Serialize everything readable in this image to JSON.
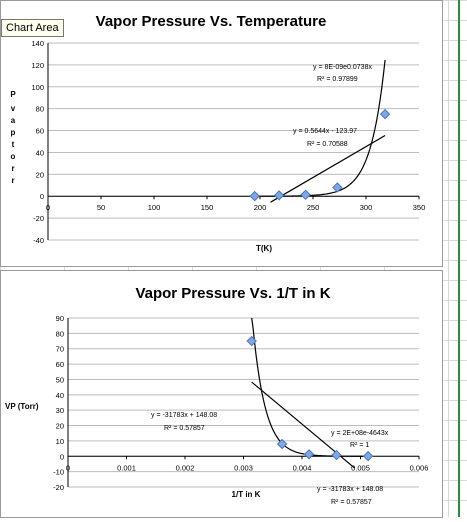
{
  "tooltip": "Chart Area",
  "colors": {
    "marker_fill": "#7ea7e3",
    "marker_stroke": "#4a75c0",
    "line": "#000000",
    "grid": "#bdbdbd",
    "spreadsheet_grid": "#d8d8d8",
    "selected_column": "#2e8b3d"
  },
  "chart_data": [
    {
      "type": "scatter",
      "title": "Vapor Pressure Vs. Temperature",
      "xlabel": "T(K)",
      "ylabel": "P vaptorr",
      "xlim": [
        0,
        350
      ],
      "ylim": [
        -40,
        140
      ],
      "xticks": [
        "0",
        "50",
        "100",
        "150",
        "200",
        "250",
        "300",
        "350"
      ],
      "yticks": [
        "140",
        "120",
        "100",
        "80",
        "60",
        "40",
        "20",
        "0",
        "-20",
        "-40"
      ],
      "grid": "horizontal",
      "series": [
        {
          "x": [
            195,
            218,
            243,
            273,
            318
          ],
          "y": [
            0.1,
            0.8,
            1.3,
            8,
            75
          ]
        }
      ],
      "trendlines": [
        {
          "type": "exponential",
          "equation": "y = 8E-09e0.0738x",
          "r2": "R² = 0.97899",
          "a": 8e-09,
          "b": 0.0738,
          "x_range": [
            190,
            318
          ]
        },
        {
          "type": "linear",
          "equation": "y = 0.5644x - 123.97",
          "r2": "R² = 0.70588",
          "m": 0.5644,
          "c": -123.97,
          "x_range": [
            210,
            318
          ]
        }
      ]
    },
    {
      "type": "scatter",
      "title": "Vapor Pressure Vs. 1/T in K",
      "xlabel": "1/T in K",
      "ylabel": "VP (Torr)",
      "xlim": [
        0,
        0.006
      ],
      "ylim": [
        -20,
        90
      ],
      "xticks": [
        "0",
        "0.001",
        "0.002",
        "0.003",
        "0.004",
        "0.005",
        "0.006"
      ],
      "yticks": [
        "90",
        "80",
        "70",
        "60",
        "50",
        "40",
        "30",
        "20",
        "10",
        "0",
        "-10",
        "-20"
      ],
      "grid": "horizontal",
      "series": [
        {
          "x": [
            0.00314,
            0.00366,
            0.00412,
            0.00459,
            0.00513
          ],
          "y": [
            75,
            8,
            1.3,
            0.8,
            0.1
          ]
        }
      ],
      "trendlines": [
        {
          "type": "exponential",
          "equation": "y = 2E+08e-4643x",
          "r2": "R² = 1",
          "a": 200000000,
          "b": -4643,
          "x_range": [
            0.00314,
            0.00513
          ]
        },
        {
          "type": "linear",
          "equation": "y = -31783x + 148.08",
          "r2": "R² = 0.57857",
          "m": -31783,
          "c": 148.08,
          "x_range": [
            0.00314,
            0.0049
          ]
        },
        {
          "type": "label",
          "equation": "y = -31783x + 148.08",
          "r2": "R² = 0.57857"
        }
      ]
    }
  ]
}
